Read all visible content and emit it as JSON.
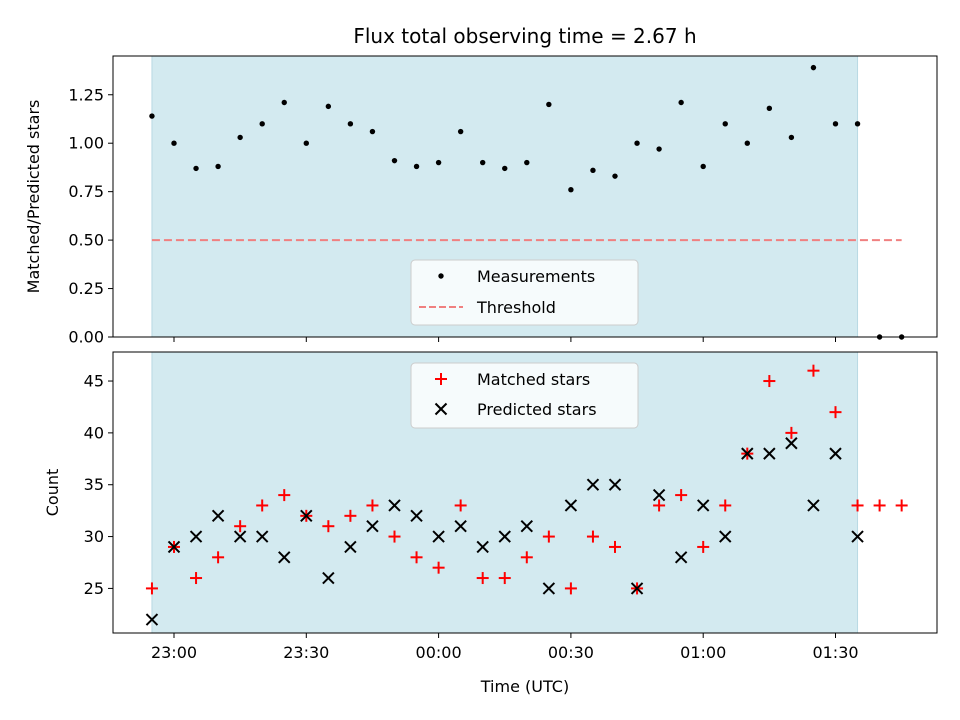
{
  "chart_data": [
    {
      "type": "scatter",
      "title": "Flux total observing time = 2.67 h",
      "ylabel": "Matched/Predicted stars",
      "xlabel": "",
      "ylim": [
        0,
        1.45
      ],
      "yticks": [
        "0.00",
        "0.25",
        "0.50",
        "0.75",
        "1.00",
        "1.25"
      ],
      "ytick_values": [
        0,
        0.25,
        0.5,
        0.75,
        1.0,
        1.25
      ],
      "observing_window": [
        "22:55",
        "01:35"
      ],
      "grid": false,
      "legend": {
        "placement": "lower-center",
        "entries": [
          "Measurements",
          "Threshold"
        ]
      },
      "threshold": {
        "name": "Threshold",
        "value": 0.5,
        "x_range": [
          "22:55",
          "01:45"
        ],
        "color": "#f08080"
      },
      "series": [
        {
          "name": "Measurements",
          "marker": "dot",
          "color": "#000000",
          "x": [
            "22:55",
            "23:00",
            "23:05",
            "23:10",
            "23:15",
            "23:20",
            "23:25",
            "23:30",
            "23:35",
            "23:40",
            "23:45",
            "23:50",
            "23:55",
            "00:00",
            "00:05",
            "00:10",
            "00:15",
            "00:20",
            "00:25",
            "00:30",
            "00:35",
            "00:40",
            "00:45",
            "00:50",
            "00:55",
            "01:00",
            "01:05",
            "01:10",
            "01:15",
            "01:20",
            "01:25",
            "01:30",
            "01:35",
            "01:40",
            "01:45"
          ],
          "y": [
            1.14,
            1.0,
            0.87,
            0.88,
            1.03,
            1.1,
            1.21,
            1.0,
            1.19,
            1.1,
            1.06,
            0.91,
            0.88,
            0.9,
            1.06,
            0.9,
            0.87,
            0.9,
            1.2,
            0.76,
            0.86,
            0.83,
            1.0,
            0.97,
            1.21,
            0.88,
            1.1,
            1.0,
            1.18,
            1.03,
            1.39,
            1.1,
            1.1,
            0,
            0
          ]
        }
      ]
    },
    {
      "type": "scatter",
      "title": "",
      "ylabel": "Count",
      "xlabel": "Time (UTC)",
      "ylim": [
        20.7,
        47.8
      ],
      "yticks": [
        "25",
        "30",
        "35",
        "40",
        "45"
      ],
      "ytick_values": [
        25,
        30,
        35,
        40,
        45
      ],
      "xticks": [
        "23:00",
        "23:30",
        "00:00",
        "00:30",
        "01:00",
        "01:30"
      ],
      "observing_window": [
        "22:55",
        "01:35"
      ],
      "grid": false,
      "legend": {
        "placement": "upper-center",
        "entries": [
          "Matched stars",
          "Predicted stars"
        ]
      },
      "series": [
        {
          "name": "Matched stars",
          "marker": "plus",
          "color": "#ff0000",
          "x": [
            "22:55",
            "23:00",
            "23:05",
            "23:10",
            "23:15",
            "23:20",
            "23:25",
            "23:30",
            "23:35",
            "23:40",
            "23:45",
            "23:50",
            "23:55",
            "00:00",
            "00:05",
            "00:10",
            "00:15",
            "00:20",
            "00:25",
            "00:30",
            "00:35",
            "00:40",
            "00:45",
            "00:50",
            "00:55",
            "01:00",
            "01:05",
            "01:10",
            "01:15",
            "01:20",
            "01:25",
            "01:30",
            "01:35",
            "01:40",
            "01:45"
          ],
          "y": [
            25,
            29,
            26,
            28,
            31,
            33,
            34,
            32,
            31,
            32,
            33,
            30,
            28,
            27,
            33,
            26,
            26,
            28,
            30,
            25,
            30,
            29,
            25,
            33,
            34,
            29,
            33,
            38,
            45,
            40,
            46,
            42,
            33,
            33,
            33
          ]
        },
        {
          "name": "Predicted stars",
          "marker": "x",
          "color": "#000000",
          "x": [
            "22:55",
            "23:00",
            "23:05",
            "23:10",
            "23:15",
            "23:20",
            "23:25",
            "23:30",
            "23:35",
            "23:40",
            "23:45",
            "23:50",
            "23:55",
            "00:00",
            "00:05",
            "00:10",
            "00:15",
            "00:20",
            "00:25",
            "00:30",
            "00:35",
            "00:40",
            "00:45",
            "00:50",
            "00:55",
            "01:00",
            "01:05",
            "01:10",
            "01:15",
            "01:20",
            "01:25",
            "01:30",
            "01:35"
          ],
          "y": [
            22,
            29,
            30,
            32,
            30,
            30,
            28,
            32,
            26,
            29,
            31,
            33,
            32,
            30,
            31,
            29,
            30,
            31,
            25,
            33,
            35,
            35,
            25,
            34,
            28,
            33,
            30,
            38,
            38,
            39,
            33,
            38,
            30
          ]
        }
      ]
    }
  ],
  "colors": {
    "window_fill": "#d3eaf0",
    "window_edge": "#b8dae4"
  }
}
